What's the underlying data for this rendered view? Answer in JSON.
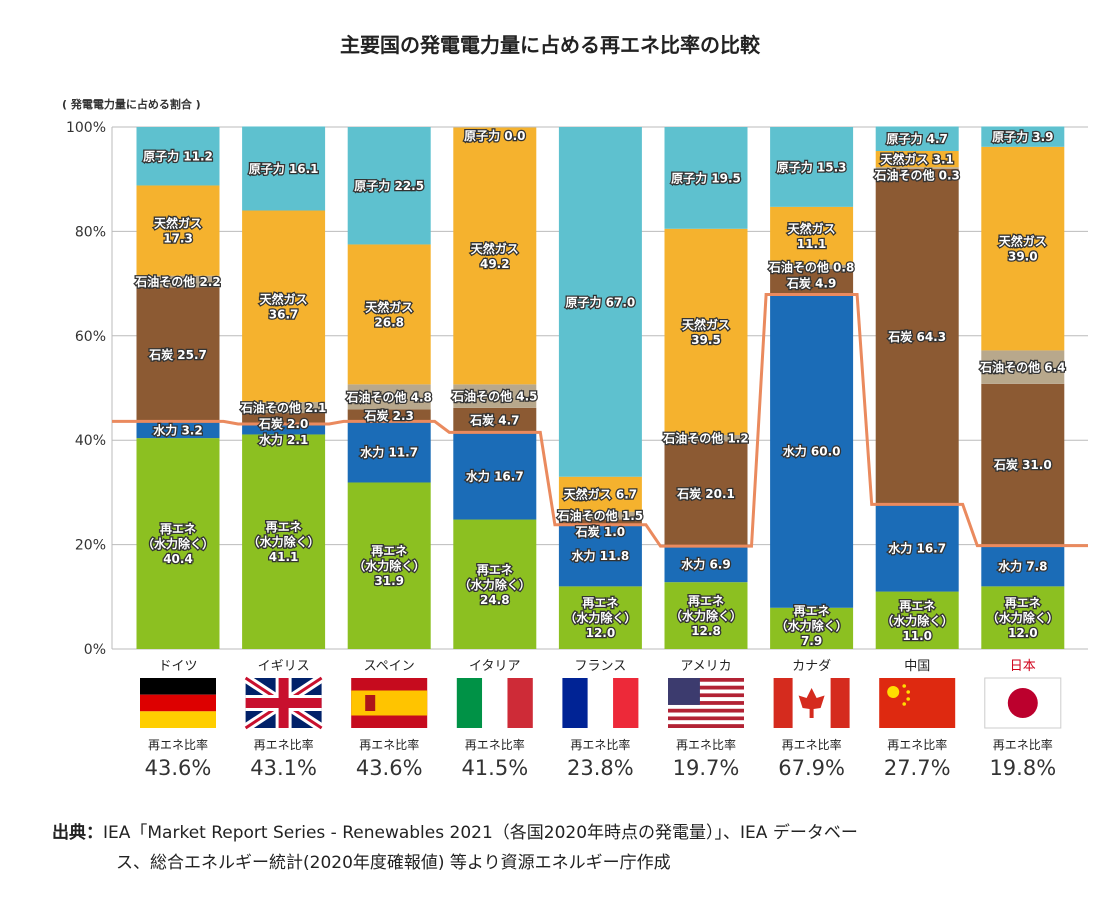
{
  "chart_data": {
    "type": "bar",
    "stacked": true,
    "title": "主要国の発電電力量に占める再エネ比率の比較",
    "ylabel": "( 発電電力量に占める割合 )",
    "ylim": [
      0,
      100
    ],
    "yticks": [
      "0%",
      "20%",
      "40%",
      "60%",
      "80%",
      "100%"
    ],
    "grid": true,
    "categories": [
      "ドイツ",
      "イギリス",
      "スペイン",
      "イタリア",
      "フランス",
      "アメリカ",
      "カナダ",
      "中国",
      "日本"
    ],
    "highlight_category": "日本",
    "series": [
      {
        "name": "再エネ（水力除く）",
        "color": "#8cc021",
        "values": [
          40.4,
          41.1,
          31.9,
          24.8,
          12.0,
          12.8,
          7.9,
          11.0,
          12.0
        ]
      },
      {
        "name": "水力",
        "color": "#1b6cb7",
        "values": [
          3.2,
          2.1,
          11.7,
          16.7,
          11.8,
          6.9,
          60.0,
          16.7,
          7.8
        ]
      },
      {
        "name": "石炭",
        "color": "#8c5a33",
        "values": [
          25.7,
          2.0,
          2.3,
          4.7,
          1.0,
          20.1,
          4.9,
          64.3,
          31.0
        ]
      },
      {
        "name": "石油その他",
        "color": "#b8a88c",
        "values": [
          2.2,
          2.1,
          4.8,
          4.5,
          1.5,
          1.2,
          0.8,
          0.3,
          6.4
        ]
      },
      {
        "name": "天然ガス",
        "color": "#f5b22e",
        "values": [
          17.3,
          36.7,
          26.8,
          49.2,
          6.7,
          39.5,
          11.1,
          3.1,
          39.0
        ]
      },
      {
        "name": "原子力",
        "color": "#5ec1cf",
        "values": [
          11.2,
          16.1,
          22.5,
          0.0,
          67.0,
          19.5,
          15.3,
          4.7,
          3.9
        ]
      }
    ],
    "renewable_ratio_label": "再エネ比率",
    "renewable_ratio": [
      "43.6%",
      "43.1%",
      "43.6%",
      "41.5%",
      "23.8%",
      "19.7%",
      "67.9%",
      "27.7%",
      "19.8%"
    ],
    "renewable_ratio_values": [
      43.6,
      43.1,
      43.6,
      41.5,
      23.8,
      19.7,
      67.9,
      27.7,
      19.8
    ],
    "line_color": "#ea8a5e"
  },
  "source": {
    "label": "出典：",
    "line1": "IEA「Market Report Series - Renewables 2021（各国2020年時点の発電量）」、IEA データベー",
    "line2": "ス、総合エネルギー統計(2020年度確報値) 等より資源エネルギー庁作成"
  }
}
